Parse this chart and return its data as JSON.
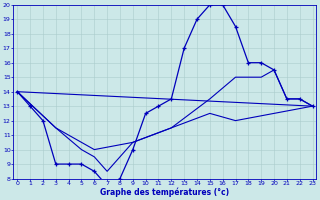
{
  "xlabel": "Graphe des températures (°c)",
  "x_ticks": [
    0,
    1,
    2,
    3,
    4,
    5,
    6,
    7,
    8,
    9,
    10,
    11,
    12,
    13,
    14,
    15,
    16,
    17,
    18,
    19,
    20,
    21,
    22,
    23
  ],
  "ylim": [
    8,
    20
  ],
  "y_ticks": [
    8,
    9,
    10,
    11,
    12,
    13,
    14,
    15,
    16,
    17,
    18,
    19,
    20
  ],
  "line_main": {
    "x": [
      0,
      1,
      2,
      3,
      4,
      5,
      6,
      7,
      8,
      9,
      10,
      11,
      12,
      13,
      14,
      15,
      16,
      17,
      18,
      19,
      20,
      21,
      22,
      23
    ],
    "y": [
      14,
      13,
      12,
      9,
      9,
      9,
      8.5,
      7.5,
      8,
      10,
      12.5,
      13,
      13.5,
      17,
      19,
      20,
      20,
      18.5,
      16,
      16,
      15.5,
      13.5,
      13.5,
      13
    ]
  },
  "line2": {
    "x": [
      0,
      23
    ],
    "y": [
      14,
      13
    ]
  },
  "line3": {
    "x": [
      0,
      3,
      6,
      9,
      12,
      15,
      17,
      20,
      23
    ],
    "y": [
      14,
      11.5,
      10,
      10.5,
      11.5,
      12.5,
      12,
      12.5,
      13
    ]
  },
  "line4": {
    "x": [
      0,
      3,
      5,
      6,
      7,
      9,
      12,
      15,
      17,
      19,
      20,
      21,
      22,
      23
    ],
    "y": [
      14,
      11.5,
      10,
      9.5,
      8.5,
      10.5,
      11.5,
      13.5,
      15,
      15,
      15.5,
      13.5,
      13.5,
      13
    ]
  },
  "bg_color": "#cce8e8",
  "grid_color": "#aacccc",
  "line_color": "#0000bb",
  "axis_color": "#0000bb",
  "label_color": "#0000bb"
}
